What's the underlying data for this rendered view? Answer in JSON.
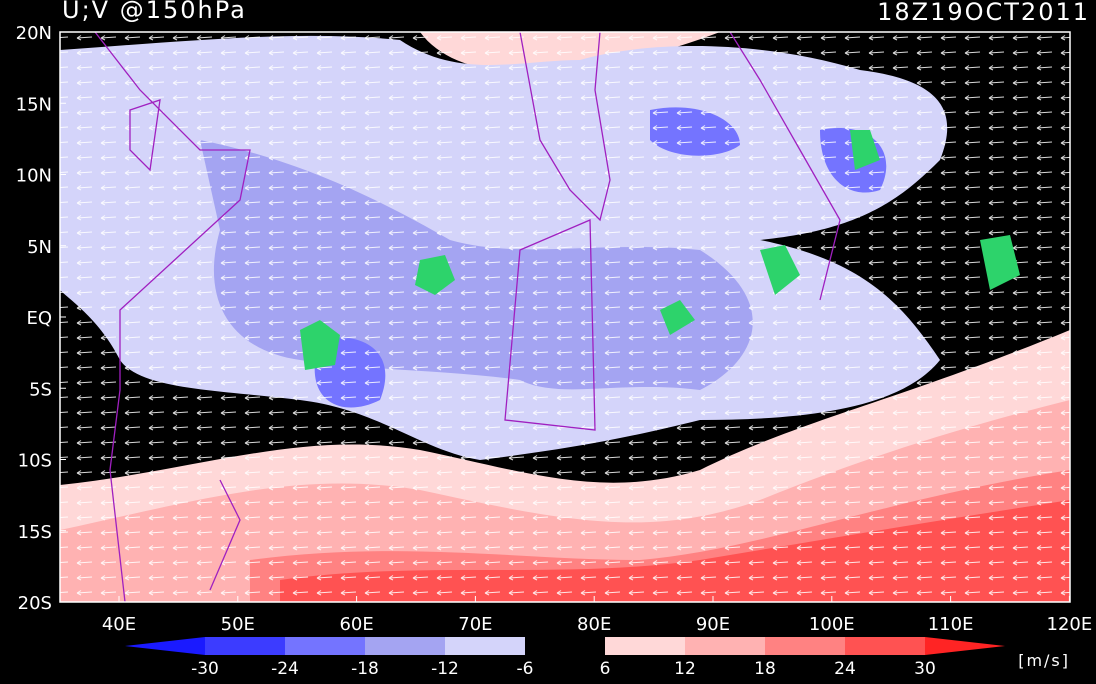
{
  "header": {
    "title": "U;V @150hPa",
    "time": "18Z19OCT2011"
  },
  "map": {
    "lat_labels": [
      "20N",
      "15N",
      "10N",
      "5N",
      "EQ",
      "5S",
      "10S",
      "15S",
      "20S"
    ],
    "lon_labels": [
      "40E",
      "50E",
      "60E",
      "70E",
      "80E",
      "90E",
      "100E",
      "110E",
      "120E"
    ]
  },
  "colorbar": {
    "levels": [
      -30,
      -24,
      -18,
      -12,
      -6,
      6,
      12,
      18,
      24,
      30
    ],
    "colors": [
      "#1a1aff",
      "#3c3cff",
      "#7474ff",
      "#a4a4f2",
      "#d4d4fa",
      "#000000",
      "#ffd8d8",
      "#ffb2b2",
      "#ff8282",
      "#ff5252",
      "#ff2424"
    ],
    "unit": "[m/s]"
  }
}
